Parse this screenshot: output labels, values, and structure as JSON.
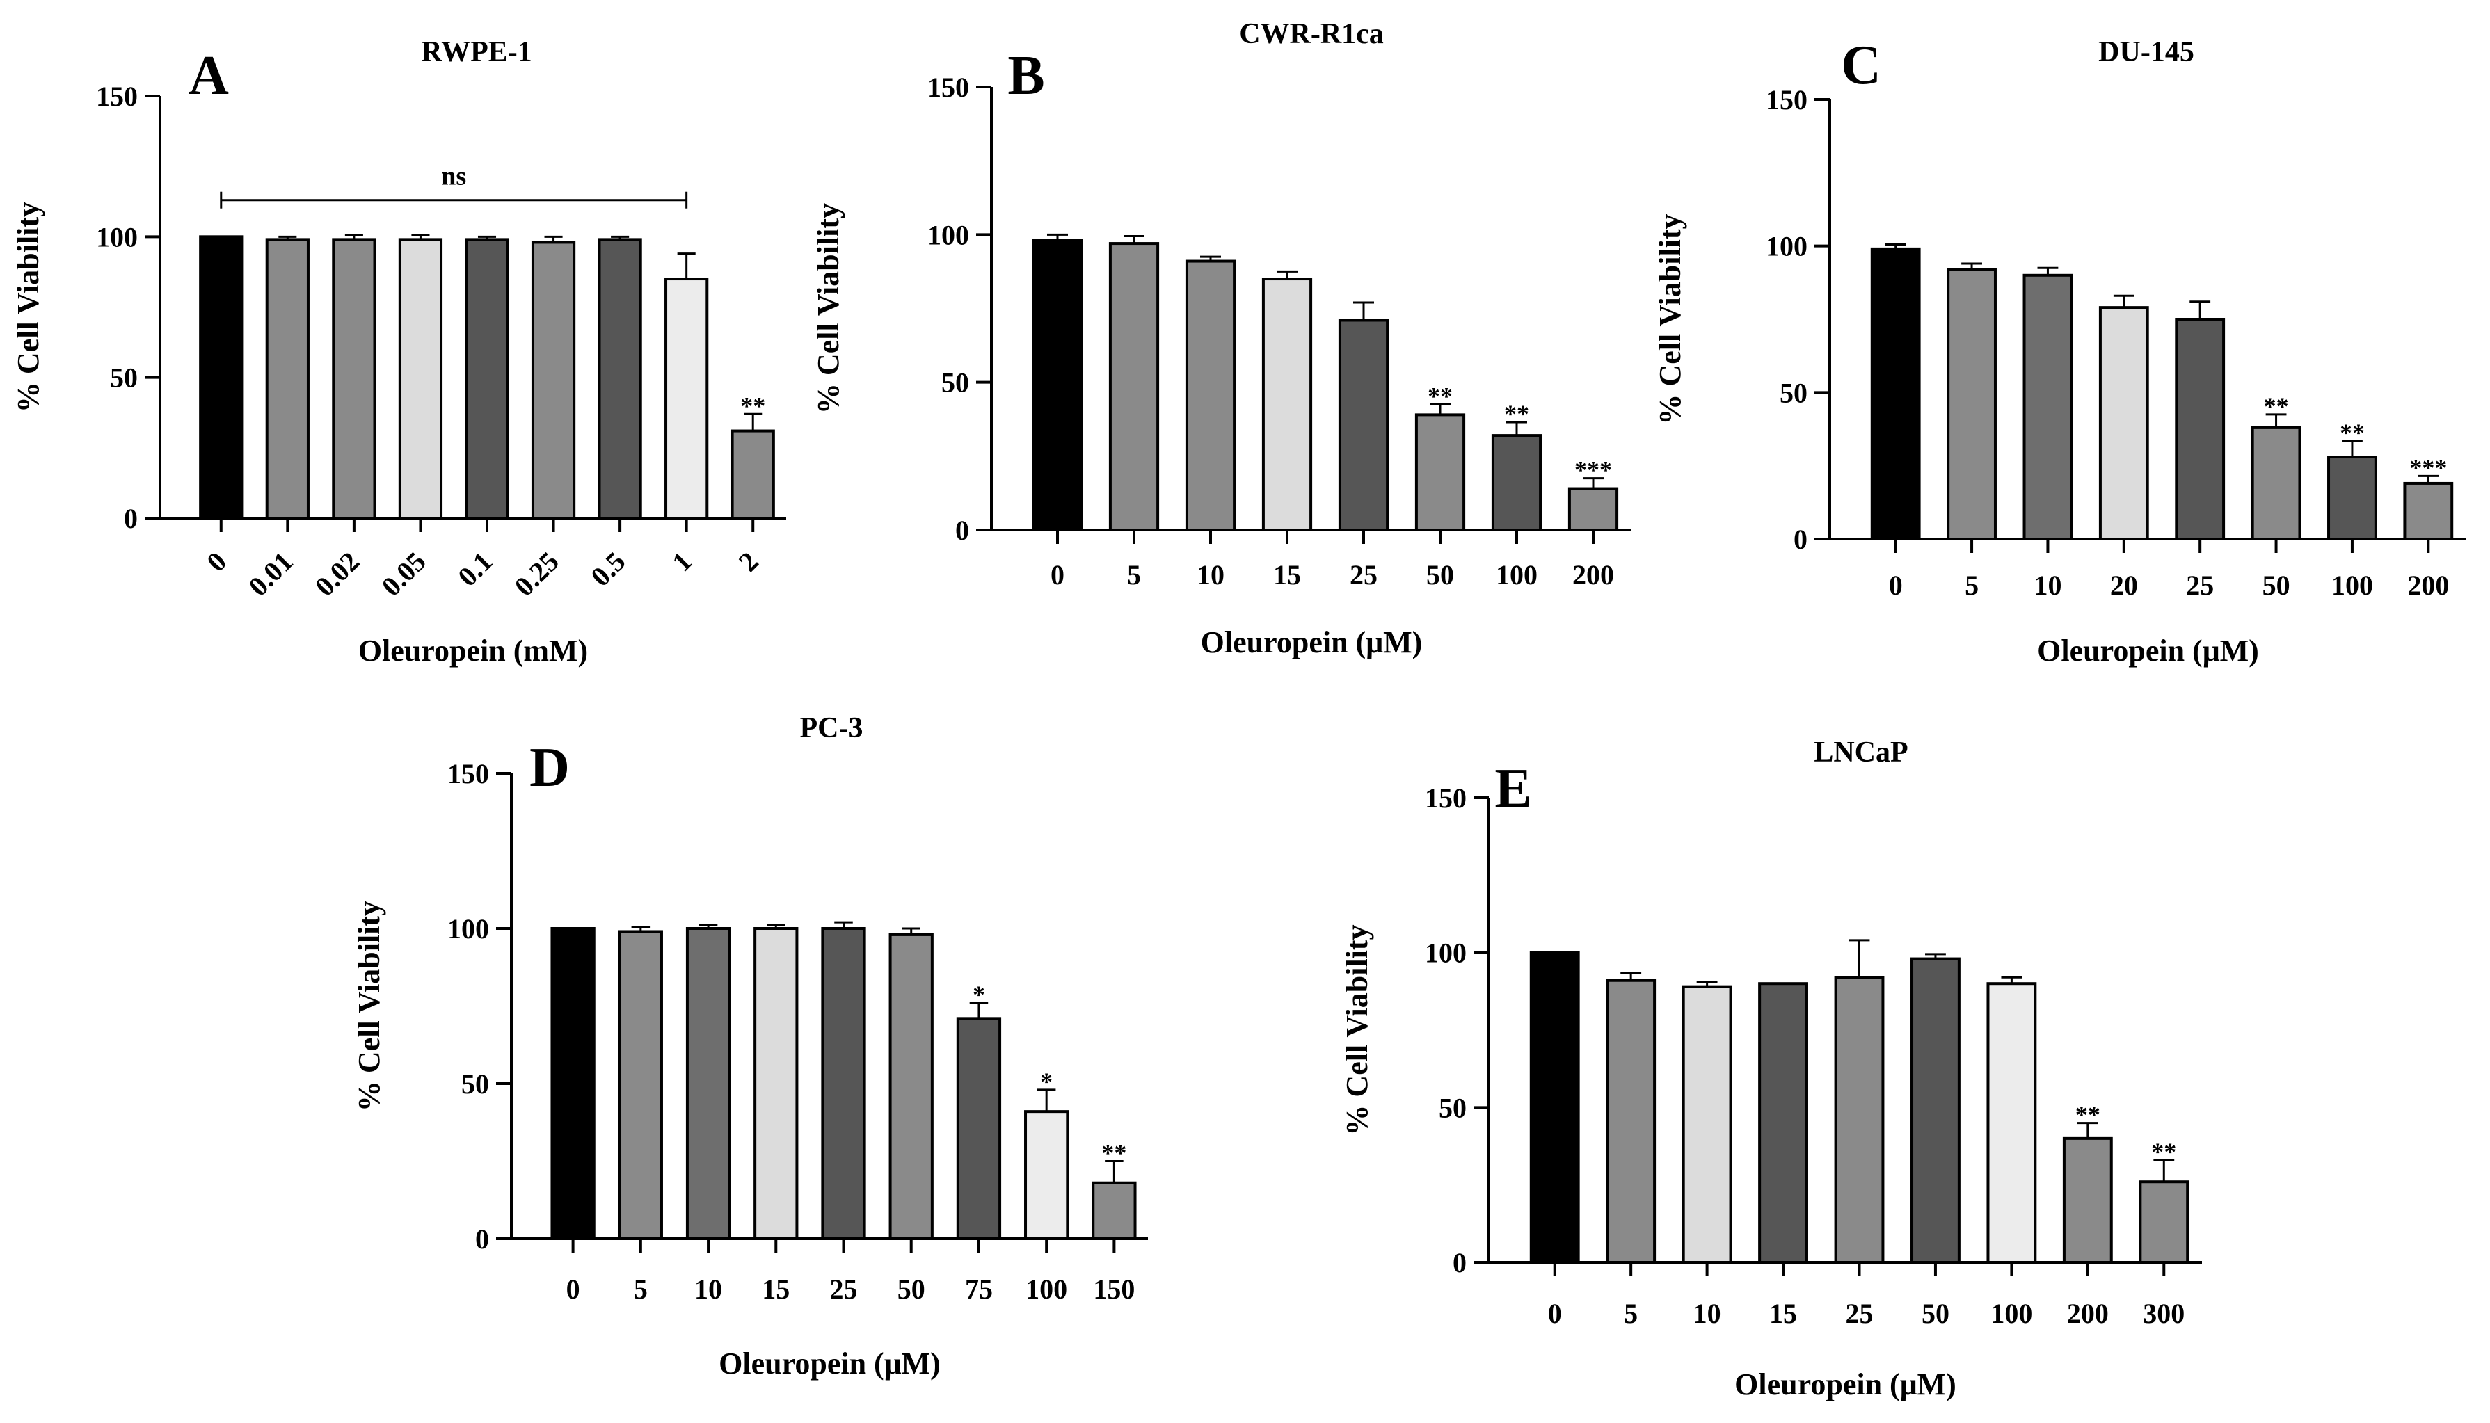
{
  "colors": {
    "black": "#000000",
    "mid_gray": "#8a8a8a",
    "light_gray": "#dcdcdc",
    "dark_gray": "#565656",
    "medium_gray": "#6e6e6e",
    "pale": "#ececec"
  },
  "chart_data": [
    {
      "panel": "A",
      "type": "bar",
      "title": "RWPE-1",
      "xlabel": "Oleuropein (mM)",
      "ylabel": "% Cell Viability",
      "ylim": [
        0,
        150
      ],
      "yticks": [
        0,
        50,
        100,
        150
      ],
      "tick_rotation": "rotated",
      "categories": [
        "0",
        "0.01",
        "0.02",
        "0.05",
        "0.1",
        "0.25",
        "0.5",
        "1",
        "2"
      ],
      "values": [
        100,
        99,
        99,
        99,
        99,
        98,
        99,
        85,
        31
      ],
      "errors": [
        0.5,
        1,
        1.5,
        1.5,
        1,
        2,
        1,
        9,
        6
      ],
      "fills": [
        "black",
        "mid_gray",
        "mid_gray",
        "light_gray",
        "dark_gray",
        "mid_gray",
        "dark_gray",
        "pale",
        "mid_gray"
      ],
      "significance": [
        "",
        "",
        "",
        "",
        "",
        "",
        "",
        "",
        "**"
      ],
      "bracket": {
        "from": 0,
        "to": 7,
        "label": "ns"
      }
    },
    {
      "panel": "B",
      "type": "bar",
      "title": "CWR-R1ca",
      "xlabel": "Oleuropein (μM)",
      "ylabel": "% Cell Viability",
      "ylim": [
        0,
        150
      ],
      "yticks": [
        0,
        50,
        100,
        150
      ],
      "categories": [
        "0",
        "5",
        "10",
        "15",
        "25",
        "50",
        "100",
        "200"
      ],
      "values": [
        98,
        97,
        91,
        85,
        71,
        39,
        32,
        14
      ],
      "errors": [
        2,
        2.5,
        1.5,
        2.5,
        6,
        3.5,
        4.5,
        3.5
      ],
      "fills": [
        "black",
        "mid_gray",
        "mid_gray",
        "light_gray",
        "dark_gray",
        "mid_gray",
        "dark_gray",
        "mid_gray"
      ],
      "significance": [
        "",
        "",
        "",
        "",
        "",
        "**",
        "**",
        "***"
      ]
    },
    {
      "panel": "C",
      "type": "bar",
      "title": "DU-145",
      "xlabel": "Oleuropein (μM)",
      "ylabel": "% Cell Viability",
      "ylim": [
        0,
        150
      ],
      "yticks": [
        0,
        50,
        100,
        150
      ],
      "categories": [
        "0",
        "5",
        "10",
        "20",
        "25",
        "50",
        "100",
        "200"
      ],
      "values": [
        99,
        92,
        90,
        79,
        75,
        38,
        28,
        19
      ],
      "errors": [
        1.5,
        2,
        2.5,
        4,
        6,
        4.5,
        5.5,
        2.5
      ],
      "fills": [
        "black",
        "mid_gray",
        "medium_gray",
        "light_gray",
        "dark_gray",
        "mid_gray",
        "dark_gray",
        "mid_gray"
      ],
      "significance": [
        "",
        "",
        "",
        "",
        "",
        "**",
        "**",
        "***"
      ]
    },
    {
      "panel": "D",
      "type": "bar",
      "title": "PC-3",
      "xlabel": "Oleuropein (μM)",
      "ylabel": "% Cell Viability",
      "ylim": [
        0,
        150
      ],
      "yticks": [
        0,
        50,
        100,
        150
      ],
      "categories": [
        "0",
        "5",
        "10",
        "15",
        "25",
        "50",
        "75",
        "100",
        "150"
      ],
      "values": [
        100,
        99,
        100,
        100,
        100,
        98,
        71,
        41,
        18
      ],
      "errors": [
        0.5,
        1.5,
        1,
        1,
        2,
        2,
        5,
        7,
        7
      ],
      "fills": [
        "black",
        "mid_gray",
        "medium_gray",
        "light_gray",
        "dark_gray",
        "mid_gray",
        "dark_gray",
        "pale",
        "mid_gray"
      ],
      "significance": [
        "",
        "",
        "",
        "",
        "",
        "",
        "*",
        "*",
        "**"
      ]
    },
    {
      "panel": "E",
      "type": "bar",
      "title": "LNCaP",
      "xlabel": "Oleuropein (μM)",
      "ylabel": "% Cell Viability",
      "ylim": [
        0,
        150
      ],
      "yticks": [
        0,
        50,
        100,
        150
      ],
      "categories": [
        "0",
        "5",
        "10",
        "15",
        "25",
        "50",
        "100",
        "200",
        "300"
      ],
      "values": [
        100,
        91,
        89,
        90,
        92,
        98,
        90,
        40,
        26
      ],
      "errors": [
        0.5,
        2.5,
        1.5,
        0.5,
        12,
        1.5,
        2,
        5,
        7
      ],
      "fills": [
        "black",
        "mid_gray",
        "light_gray",
        "dark_gray",
        "mid_gray",
        "dark_gray",
        "pale",
        "mid_gray",
        "mid_gray"
      ],
      "significance": [
        "",
        "",
        "",
        "",
        "",
        "",
        "",
        "**",
        "**"
      ]
    }
  ]
}
